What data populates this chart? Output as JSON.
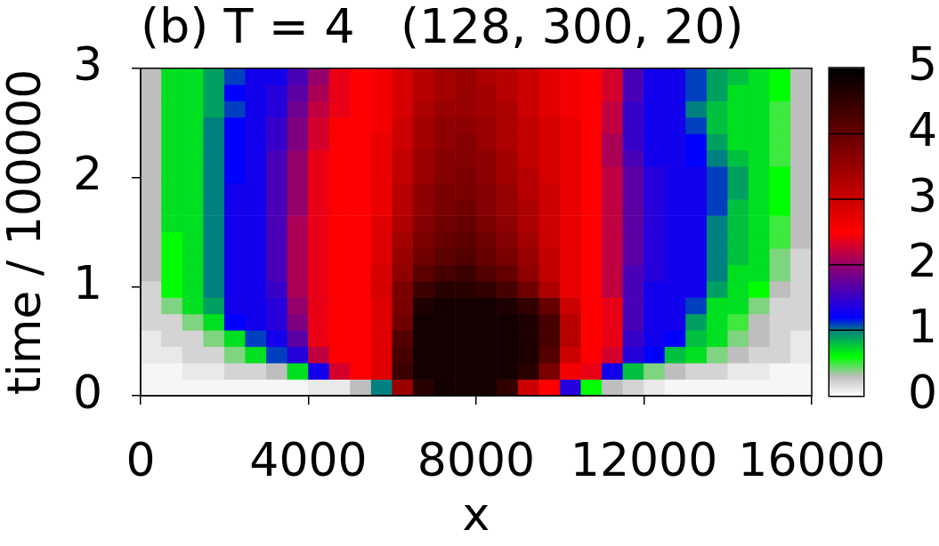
{
  "chart_data": {
    "type": "heatmap",
    "title": "(b) T = 4   (128, 300, 20)",
    "xlabel": "x",
    "ylabel": "time / 100000",
    "x": [
      250,
      750,
      1250,
      1750,
      2250,
      2750,
      3250,
      3750,
      4250,
      4750,
      5250,
      5750,
      6250,
      6750,
      7250,
      7750,
      8250,
      8750,
      9250,
      9750,
      10250,
      10750,
      11250,
      11750,
      12250,
      12750,
      13250,
      13750,
      14250,
      14750,
      15250,
      15750
    ],
    "xlim": [
      0,
      16000
    ],
    "xticks": [
      0,
      4000,
      8000,
      12000,
      16000
    ],
    "ylim": [
      0,
      3
    ],
    "yticks": [
      0,
      1,
      2,
      3
    ],
    "clim": [
      0,
      5
    ],
    "cticks": [
      0,
      1,
      2,
      3,
      4,
      5
    ],
    "cells": [
      [
        0.3,
        0.7,
        0.7,
        0.9,
        1.1,
        1.3,
        1.3,
        1.6,
        2.0,
        2.4,
        2.5,
        2.6,
        2.9,
        3.2,
        3.4,
        3.5,
        3.3,
        3.2,
        3.0,
        2.8,
        2.6,
        2.5,
        2.3,
        1.6,
        1.3,
        1.3,
        1.1,
        0.9,
        0.8,
        0.7,
        0.6,
        0.3
      ],
      [
        0.3,
        0.7,
        0.7,
        0.9,
        1.2,
        1.3,
        1.4,
        1.7,
        2.1,
        2.4,
        2.5,
        2.6,
        2.9,
        3.2,
        3.4,
        3.5,
        3.4,
        3.2,
        3.0,
        2.8,
        2.6,
        2.5,
        2.3,
        1.6,
        1.3,
        1.3,
        1.1,
        0.9,
        0.7,
        0.7,
        0.6,
        0.3
      ],
      [
        0.3,
        0.7,
        0.7,
        0.9,
        1.1,
        1.3,
        1.4,
        1.8,
        2.2,
        2.4,
        2.5,
        2.6,
        2.9,
        3.3,
        3.5,
        3.5,
        3.4,
        3.3,
        3.0,
        2.8,
        2.6,
        2.5,
        2.2,
        1.5,
        1.3,
        1.3,
        1.0,
        0.8,
        0.7,
        0.7,
        0.5,
        0.3
      ],
      [
        0.3,
        0.7,
        0.7,
        1.0,
        1.2,
        1.3,
        1.5,
        1.9,
        2.3,
        2.5,
        2.5,
        2.6,
        3.0,
        3.4,
        3.6,
        3.6,
        3.5,
        3.3,
        3.1,
        2.9,
        2.7,
        2.5,
        2.2,
        1.5,
        1.3,
        1.3,
        1.1,
        0.8,
        0.7,
        0.7,
        0.5,
        0.3
      ],
      [
        0.3,
        0.7,
        0.7,
        1.0,
        1.2,
        1.3,
        1.5,
        1.9,
        2.3,
        2.5,
        2.5,
        2.7,
        3.0,
        3.4,
        3.6,
        3.7,
        3.5,
        3.3,
        3.1,
        2.9,
        2.7,
        2.5,
        2.1,
        1.5,
        1.3,
        1.3,
        1.2,
        0.9,
        0.7,
        0.7,
        0.5,
        0.3
      ],
      [
        0.3,
        0.7,
        0.7,
        1.0,
        1.2,
        1.3,
        1.6,
        2.0,
        2.4,
        2.5,
        2.5,
        2.7,
        3.1,
        3.5,
        3.7,
        3.7,
        3.6,
        3.4,
        3.1,
        2.9,
        2.7,
        2.5,
        2.1,
        1.6,
        1.3,
        1.3,
        1.2,
        1.0,
        0.8,
        0.7,
        0.5,
        0.3
      ],
      [
        0.3,
        0.7,
        0.7,
        1.0,
        1.2,
        1.3,
        1.6,
        2.0,
        2.4,
        2.5,
        2.5,
        2.7,
        3.1,
        3.5,
        3.7,
        3.8,
        3.6,
        3.4,
        3.2,
        2.9,
        2.7,
        2.5,
        2.2,
        1.7,
        1.4,
        1.3,
        1.3,
        1.1,
        0.9,
        0.7,
        0.6,
        0.3
      ],
      [
        0.3,
        0.7,
        0.7,
        1.0,
        1.3,
        1.3,
        1.6,
        2.0,
        2.4,
        2.5,
        2.5,
        2.7,
        3.2,
        3.6,
        3.8,
        3.8,
        3.7,
        3.5,
        3.2,
        3.0,
        2.7,
        2.5,
        2.2,
        1.7,
        1.4,
        1.3,
        1.3,
        1.1,
        0.9,
        0.7,
        0.6,
        0.3
      ],
      [
        0.3,
        0.7,
        0.7,
        1.0,
        1.3,
        1.3,
        1.6,
        2.0,
        2.4,
        2.5,
        2.5,
        2.7,
        3.2,
        3.6,
        3.8,
        3.9,
        3.7,
        3.5,
        3.3,
        3.0,
        2.7,
        2.5,
        2.2,
        1.7,
        1.4,
        1.3,
        1.3,
        1.1,
        0.8,
        0.7,
        0.6,
        0.3
      ],
      [
        0.3,
        0.7,
        0.7,
        1.0,
        1.3,
        1.3,
        1.6,
        2.1,
        2.4,
        2.5,
        2.5,
        2.8,
        3.3,
        3.7,
        3.9,
        4.0,
        3.8,
        3.6,
        3.3,
        3.0,
        2.7,
        2.5,
        2.2,
        1.7,
        1.4,
        1.3,
        1.3,
        1.0,
        0.8,
        0.7,
        0.5,
        0.3
      ],
      [
        0.3,
        0.6,
        0.7,
        1.0,
        1.3,
        1.3,
        1.6,
        2.1,
        2.4,
        2.5,
        2.5,
        2.8,
        3.4,
        3.8,
        4.0,
        4.1,
        3.9,
        3.7,
        3.4,
        3.0,
        2.7,
        2.5,
        2.2,
        1.7,
        1.4,
        1.3,
        1.3,
        1.0,
        0.8,
        0.7,
        0.5,
        0.3
      ],
      [
        0.3,
        0.6,
        0.7,
        1.0,
        1.3,
        1.3,
        1.6,
        2.1,
        2.4,
        2.5,
        2.5,
        2.8,
        3.5,
        3.9,
        4.1,
        4.2,
        4.0,
        3.8,
        3.5,
        3.1,
        2.7,
        2.5,
        2.2,
        1.7,
        1.4,
        1.3,
        1.3,
        1.0,
        0.8,
        0.7,
        0.4,
        0.2
      ],
      [
        0.3,
        0.6,
        0.7,
        1.0,
        1.3,
        1.3,
        1.6,
        2.1,
        2.4,
        2.5,
        2.5,
        2.9,
        3.6,
        4.1,
        4.3,
        4.4,
        4.2,
        4.0,
        3.6,
        3.1,
        2.7,
        2.5,
        2.2,
        1.6,
        1.4,
        1.3,
        1.3,
        1.0,
        0.7,
        0.7,
        0.4,
        0.2
      ],
      [
        0.2,
        0.6,
        0.7,
        1.0,
        1.3,
        1.3,
        1.5,
        2.1,
        2.4,
        2.5,
        2.5,
        2.9,
        3.8,
        4.4,
        4.6,
        4.6,
        4.5,
        4.3,
        3.9,
        3.3,
        2.7,
        2.5,
        2.2,
        1.6,
        1.3,
        1.3,
        1.3,
        0.9,
        0.7,
        0.6,
        0.3,
        0.2
      ],
      [
        0.2,
        0.4,
        0.7,
        0.9,
        1.3,
        1.3,
        1.4,
        2.0,
        2.4,
        2.5,
        2.5,
        2.8,
        3.8,
        4.7,
        4.8,
        4.8,
        4.8,
        4.7,
        4.5,
        4.0,
        3.0,
        2.5,
        2.4,
        1.6,
        1.3,
        1.3,
        1.1,
        0.7,
        0.7,
        0.4,
        0.2,
        0.2
      ],
      [
        0.2,
        0.2,
        0.4,
        0.7,
        1.2,
        1.3,
        1.4,
        1.9,
        2.4,
        2.5,
        2.5,
        2.8,
        3.9,
        4.8,
        4.8,
        4.8,
        4.8,
        4.8,
        4.7,
        4.3,
        3.2,
        2.5,
        2.4,
        1.6,
        1.3,
        1.3,
        0.9,
        0.7,
        0.5,
        0.3,
        0.2,
        0.2
      ],
      [
        0.1,
        0.2,
        0.2,
        0.4,
        0.7,
        1.1,
        1.3,
        1.7,
        2.4,
        2.5,
        2.5,
        2.8,
        4.2,
        4.8,
        4.8,
        4.8,
        4.8,
        4.8,
        4.7,
        4.3,
        3.2,
        2.5,
        2.4,
        1.5,
        1.3,
        1.2,
        0.8,
        0.7,
        0.4,
        0.3,
        0.2,
        0.1
      ],
      [
        0.1,
        0.1,
        0.2,
        0.2,
        0.4,
        0.7,
        1.1,
        1.4,
        2.2,
        2.5,
        2.5,
        2.8,
        4.3,
        4.8,
        4.8,
        4.8,
        4.8,
        4.8,
        4.7,
        4.2,
        3.0,
        2.5,
        2.3,
        1.4,
        1.2,
        0.8,
        0.7,
        0.4,
        0.3,
        0.2,
        0.2,
        0.1
      ],
      [
        0,
        0,
        0.1,
        0.1,
        0.2,
        0.2,
        0.3,
        0.7,
        1.3,
        2.3,
        2.5,
        2.8,
        4.4,
        4.8,
        4.8,
        4.8,
        4.8,
        4.8,
        4.6,
        3.8,
        2.6,
        2.4,
        1.3,
        0.8,
        0.4,
        0.3,
        0.2,
        0.2,
        0.1,
        0.1,
        0,
        0
      ],
      [
        0,
        0,
        0,
        0,
        0,
        0,
        0,
        0,
        0.1,
        0.1,
        0.3,
        1.0,
        3.5,
        4.6,
        4.8,
        4.8,
        4.8,
        4.5,
        3.0,
        2.5,
        1.4,
        0.6,
        0.3,
        0.2,
        0.1,
        0,
        0,
        0,
        0,
        0,
        0,
        0
      ]
    ]
  }
}
